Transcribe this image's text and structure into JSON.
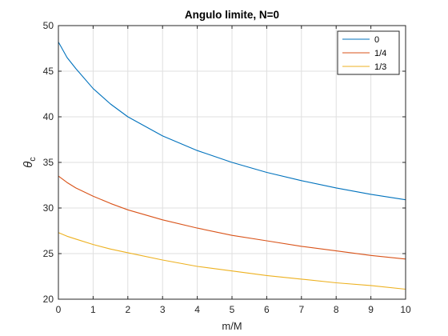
{
  "chart_data": {
    "type": "line",
    "title": "Angulo limite, N=0",
    "xlabel": "m/M",
    "ylabel": "θ",
    "ylabel_subscript": "c",
    "xlim": [
      0,
      10
    ],
    "ylim": [
      20,
      50
    ],
    "xticks": [
      "0",
      "1",
      "2",
      "3",
      "4",
      "5",
      "6",
      "7",
      "8",
      "9",
      "10"
    ],
    "yticks": [
      "20",
      "25",
      "30",
      "35",
      "40",
      "45",
      "50"
    ],
    "grid": true,
    "legend_position": "top-right",
    "x": [
      0,
      0.25,
      0.5,
      1,
      1.5,
      2,
      3,
      4,
      5,
      6,
      7,
      8,
      9,
      10
    ],
    "series": [
      {
        "name": "0",
        "color": "#0072BD",
        "values": [
          48.2,
          46.5,
          45.3,
          43.1,
          41.4,
          40.0,
          37.9,
          36.3,
          35.0,
          33.9,
          33.0,
          32.2,
          31.5,
          30.9
        ]
      },
      {
        "name": "1/4",
        "color": "#D95319",
        "values": [
          33.5,
          32.8,
          32.2,
          31.3,
          30.5,
          29.8,
          28.7,
          27.8,
          27.0,
          26.4,
          25.8,
          25.3,
          24.8,
          24.4
        ]
      },
      {
        "name": "1/3",
        "color": "#EDB120",
        "values": [
          27.3,
          26.9,
          26.6,
          26.0,
          25.5,
          25.1,
          24.3,
          23.6,
          23.1,
          22.6,
          22.2,
          21.8,
          21.5,
          21.1
        ]
      }
    ]
  }
}
